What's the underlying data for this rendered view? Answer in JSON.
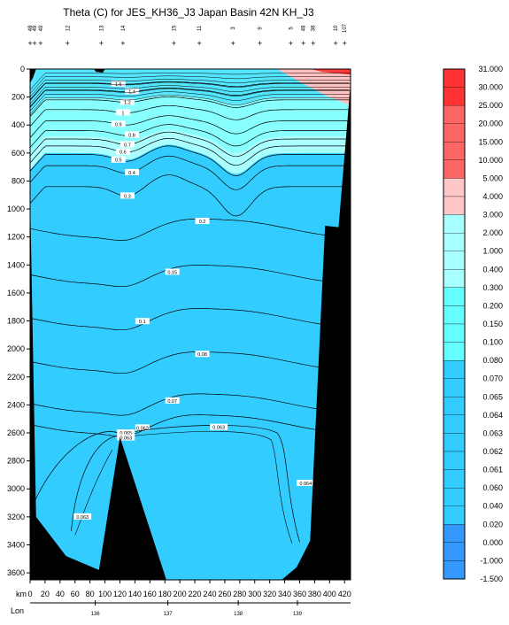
{
  "chart_data": {
    "type": "heatmap",
    "title": "Theta (C) for JES_KH36_J3 Japan Basin 42N KH_J3",
    "xlabel": "km",
    "lon_label": "Lon",
    "x_ticks": [
      0,
      20,
      40,
      60,
      80,
      100,
      120,
      140,
      160,
      180,
      200,
      220,
      240,
      260,
      280,
      300,
      320,
      340,
      360,
      380,
      400,
      420
    ],
    "xlim": [
      0,
      428
    ],
    "y_ticks": [
      0,
      200,
      400,
      600,
      800,
      1000,
      1200,
      1400,
      1600,
      1800,
      2000,
      2200,
      2400,
      2600,
      2800,
      3000,
      3200,
      3400,
      3600
    ],
    "ylim": [
      0,
      3650
    ],
    "lon_ticks": [
      {
        "km": 87,
        "label": "136"
      },
      {
        "km": 184,
        "label": "137"
      },
      {
        "km": 278,
        "label": "138"
      },
      {
        "km": 357,
        "label": "139"
      }
    ],
    "stations": [
      {
        "km": 0,
        "label": "48"
      },
      {
        "km": 6,
        "label": "49"
      },
      {
        "km": 14,
        "label": "49"
      },
      {
        "km": 50,
        "label": "12"
      },
      {
        "km": 95,
        "label": "13"
      },
      {
        "km": 124,
        "label": "14"
      },
      {
        "km": 192,
        "label": "15"
      },
      {
        "km": 226,
        "label": "11"
      },
      {
        "km": 271,
        "label": "3"
      },
      {
        "km": 307,
        "label": "9"
      },
      {
        "km": 348,
        "label": "5"
      },
      {
        "km": 365,
        "label": "48"
      },
      {
        "km": 378,
        "label": "38"
      },
      {
        "km": 408,
        "label": "10"
      },
      {
        "km": 420,
        "label": "107"
      }
    ],
    "contour_levels": [
      {
        "depth_km60": 2540,
        "label": "0.063"
      },
      {
        "depth_km60": 2390,
        "label": "0.07"
      },
      {
        "depth_km60": 2090,
        "label": "0.08"
      },
      {
        "depth_km60": 1780,
        "label": "0.1"
      },
      {
        "depth_km60": 1470,
        "label": "0.15"
      },
      {
        "depth_km60": 1140,
        "label": "0.2"
      },
      {
        "depth_km60": 840,
        "label": "0.3"
      },
      {
        "depth_km60": 690,
        "label": "0.4"
      },
      {
        "depth_km60": 610,
        "label": "0.5"
      },
      {
        "depth_km60": 550,
        "label": "0.6"
      },
      {
        "depth_km60": 500,
        "label": "0.7"
      },
      {
        "depth_km60": 440,
        "label": "0.8"
      },
      {
        "depth_km60": 370,
        "label": "0.9"
      },
      {
        "depth_km60": 290,
        "label": "1"
      },
      {
        "depth_km60": 220,
        "label": "1.2"
      },
      {
        "depth_km60": 150,
        "label": "1.4"
      },
      {
        "depth_km60": 100,
        "label": "1.6"
      }
    ],
    "inline_labels": [
      {
        "km": 70,
        "depth": 3200,
        "label": "0.063"
      },
      {
        "km": 128,
        "depth": 2600,
        "label": "0.065"
      },
      {
        "km": 128,
        "depth": 2635,
        "label": "0.063"
      },
      {
        "km": 252,
        "depth": 2560,
        "label": "0.063"
      },
      {
        "km": 368,
        "depth": 2960,
        "label": "0.064"
      }
    ],
    "colorbar": {
      "labels": [
        "31.000",
        "30.000",
        "25.000",
        "20.000",
        "15.000",
        "10.000",
        "5.000",
        "4.000",
        "3.000",
        "2.000",
        "1.000",
        "0.400",
        "0.300",
        "0.200",
        "0.150",
        "0.100",
        "0.080",
        "0.070",
        "0.065",
        "0.064",
        "0.063",
        "0.062",
        "0.061",
        "0.060",
        "0.040",
        "0.020",
        "0.000",
        "-1.000",
        "-1.500"
      ]
    },
    "colors": {
      "deep": "#33ccff",
      "deep_line": "#1aa6e0",
      "mid": "#55e6ff",
      "upper": "#88ffff",
      "shallow": "#aaffff",
      "warm": "#ffc0c0",
      "hot": "#ff3a3a",
      "cold": "#3399ff",
      "topography": "#000000"
    }
  }
}
